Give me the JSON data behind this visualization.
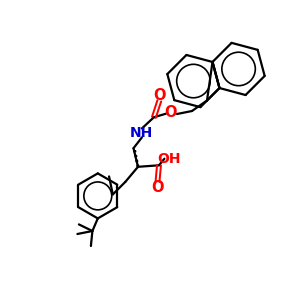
{
  "bg_color": "#ffffff",
  "bond_color": "#000000",
  "o_color": "#ff0000",
  "n_color": "#0000cc",
  "lw": 1.6,
  "fig_size": [
    3.0,
    3.0
  ],
  "dpi": 100,
  "xlim": [
    0,
    10
  ],
  "ylim": [
    0,
    10
  ]
}
